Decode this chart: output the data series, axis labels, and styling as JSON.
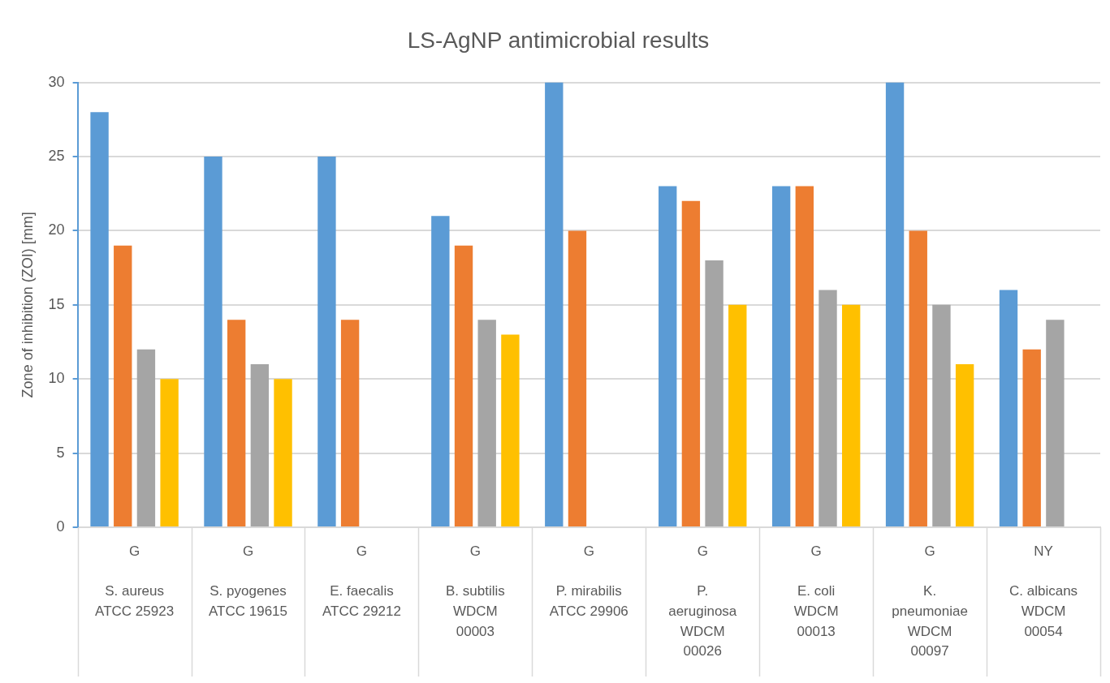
{
  "chart_data": {
    "type": "bar",
    "title": "LS-AgNP antimicrobial results",
    "ylabel": "Zone of inhibition (ZOI) [mm]",
    "categories": [
      "G\nS. aureus ATCC 25923",
      "G\nS. pyogenes ATCC 19615",
      "G\nE. faecalis ATCC 29212",
      "G\nB. subtilis WDCM 00003",
      "G\nP. mirabilis ATCC 29906",
      "G\nP. aeruginosa WDCM 00026",
      "G\nE. coli WDCM 00013",
      "G\nK. pneumoniae WDCM 00097",
      "NY\nC. albicans WDCM 00054"
    ],
    "series": [
      {
        "color": "#5b9bd5",
        "values": [
          28,
          25,
          25,
          21,
          30,
          23,
          23,
          30,
          16
        ]
      },
      {
        "color": "#ed7d31",
        "values": [
          19,
          14,
          14,
          19,
          20,
          22,
          23,
          20,
          12
        ]
      },
      {
        "color": "#a5a5a5",
        "values": [
          12,
          11,
          null,
          14,
          null,
          18,
          16,
          15,
          14
        ]
      },
      {
        "color": "#ffc000",
        "values": [
          10,
          10,
          null,
          13,
          null,
          15,
          15,
          11,
          null
        ]
      }
    ],
    "ylim": [
      0,
      30
    ],
    "yticks": [
      0,
      5,
      10,
      15,
      20,
      25,
      30
    ],
    "grid": "y",
    "legend": false
  }
}
